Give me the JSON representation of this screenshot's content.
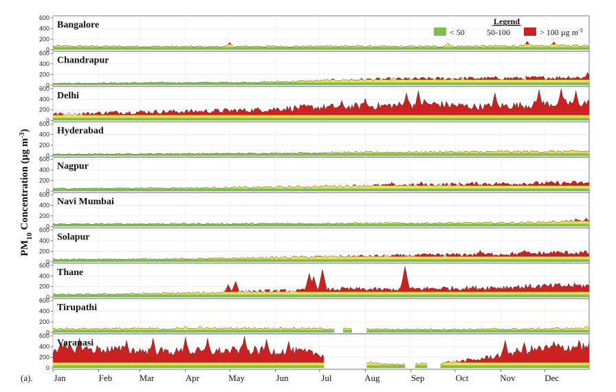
{
  "chart_data": {
    "type": "area",
    "panel_tag": "(a).",
    "ylabel_main": "PM",
    "ylabel_sub": "10",
    "ylabel_rest": " Concentration  (μg m",
    "ylabel_sup": "-3",
    "ylabel_end": ")",
    "months": [
      "Jan",
      "Feb",
      "Mar",
      "Apr",
      "May",
      "Jun",
      "Jul",
      "Aug",
      "Sep",
      "Oct",
      "Nov",
      "Dec"
    ],
    "month_tick_days": [
      0,
      31,
      59,
      90,
      120,
      151,
      181,
      212,
      243,
      273,
      304,
      334
    ],
    "ylim": [
      0,
      600
    ],
    "yticks": [
      0,
      200,
      400,
      600
    ],
    "thresholds": [
      50,
      100
    ],
    "colors": {
      "low": "#7dbf4a",
      "mid": "#f1e04a",
      "high": "#cc2121",
      "outline": "#333333"
    },
    "legend": {
      "title": "Legend",
      "entries": [
        "< 50",
        "50-100",
        "> 100 µg m"
      ],
      "entry_sup": "-3"
    },
    "series": [
      {
        "name": "Bangalore",
        "monthly_mean": [
          65,
          62,
          60,
          58,
          62,
          62,
          68,
          60,
          62,
          66,
          72,
          78
        ],
        "peaks": [
          [
            120,
            140
          ],
          [
            268,
            130
          ],
          [
            322,
            160
          ],
          [
            340,
            150
          ]
        ],
        "gaps": []
      },
      {
        "name": "Chandrapur",
        "monthly_mean": [
          35,
          40,
          45,
          48,
          52,
          70,
          95,
          110,
          120,
          125,
          130,
          140
        ],
        "peaks": [
          [
            363,
            240
          ],
          [
            350,
            170
          ]
        ],
        "gaps": []
      },
      {
        "name": "Delhi",
        "monthly_mean": [
          120,
          150,
          160,
          170,
          190,
          230,
          250,
          270,
          300,
          250,
          280,
          320
        ],
        "peaks": [
          [
            240,
            520
          ],
          [
            248,
            560
          ],
          [
            252,
            400
          ],
          [
            300,
            520
          ],
          [
            330,
            580
          ],
          [
            345,
            600
          ],
          [
            355,
            560
          ],
          [
            196,
            380
          ],
          [
            212,
            420
          ]
        ],
        "gaps": []
      },
      {
        "name": "Hyderabad",
        "monthly_mean": [
          30,
          35,
          38,
          40,
          45,
          55,
          60,
          65,
          70,
          72,
          78,
          80
        ],
        "peaks": [],
        "gaps": []
      },
      {
        "name": "Nagpur",
        "monthly_mean": [
          50,
          55,
          60,
          62,
          70,
          80,
          95,
          110,
          120,
          135,
          140,
          150
        ],
        "peaks": [
          [
            230,
            170
          ],
          [
            250,
            180
          ]
        ],
        "gaps": []
      },
      {
        "name": "Navi Mumbai",
        "monthly_mean": [
          45,
          48,
          50,
          50,
          52,
          55,
          58,
          60,
          62,
          65,
          70,
          95
        ],
        "peaks": [
          [
            355,
            150
          ],
          [
            362,
            160
          ]
        ],
        "gaps": []
      },
      {
        "name": "Solapur",
        "monthly_mean": [
          45,
          50,
          55,
          60,
          70,
          85,
          100,
          110,
          125,
          135,
          150,
          165
        ],
        "peaks": [
          [
            290,
            220
          ],
          [
            320,
            220
          ],
          [
            340,
            210
          ]
        ],
        "gaps": []
      },
      {
        "name": "Thane",
        "monthly_mean": [
          50,
          60,
          70,
          80,
          110,
          120,
          150,
          140,
          160,
          170,
          190,
          210
        ],
        "peaks": [
          [
            174,
            450
          ],
          [
            177,
            390
          ],
          [
            183,
            520
          ],
          [
            239,
            580
          ],
          [
            124,
            300
          ],
          [
            119,
            240
          ]
        ],
        "gaps": []
      },
      {
        "name": "Tirupathi",
        "monthly_mean": [
          70,
          72,
          70,
          75,
          80,
          75,
          70,
          60,
          60,
          60,
          65,
          75
        ],
        "peaks": [
          [
            90,
            120
          ],
          [
            100,
            130
          ],
          [
            362,
            130
          ]
        ],
        "gaps": [
          [
            192,
            196
          ],
          [
            204,
            212
          ]
        ]
      },
      {
        "name": "Varanasi",
        "monthly_mean": [
          350,
          330,
          300,
          300,
          320,
          300,
          200,
          60,
          80,
          150,
          320,
          380
        ],
        "peaks": [
          [
            8,
            500
          ],
          [
            18,
            560
          ],
          [
            50,
            520
          ],
          [
            68,
            560
          ],
          [
            90,
            580
          ],
          [
            105,
            560
          ],
          [
            130,
            600
          ],
          [
            145,
            540
          ],
          [
            160,
            500
          ],
          [
            307,
            520
          ],
          [
            320,
            480
          ],
          [
            340,
            500
          ],
          [
            357,
            520
          ]
        ],
        "gaps": [
          [
            185,
            212
          ],
          [
            240,
            245
          ],
          [
            255,
            262
          ]
        ]
      }
    ]
  }
}
